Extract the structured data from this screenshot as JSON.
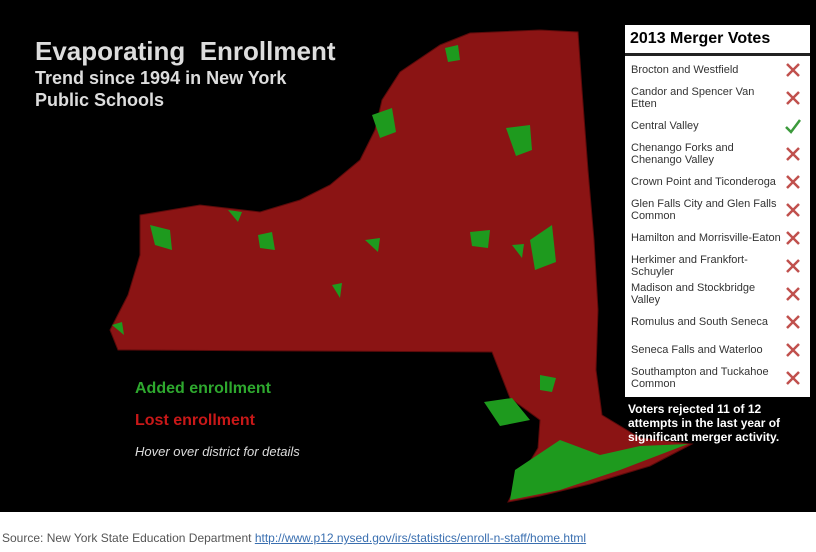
{
  "header": {
    "title": "Evaporating  Enrollment",
    "subtitle": "Trend since 1994 in New York Public Schools"
  },
  "legend": {
    "added": "Added enrollment",
    "lost": "Lost enrollment",
    "hint": "Hover over district for details"
  },
  "merger_votes": {
    "title": "2013 Merger Votes",
    "rows": [
      "Brocton and Westfield",
      "Candor and Spencer Van Etten",
      "Central Valley",
      "Chenango Forks and Chenango Valley",
      "Crown Point and Ticonderoga",
      "Glen Falls City and Glen Falls Common",
      "Hamilton and Morrisville-Eaton",
      "Herkimer and Frankfort-Schuyler",
      "Madison and Stockbridge Valley",
      "Romulus and South Seneca",
      "Seneca Falls and Waterloo",
      "Southampton and Tuckahoe Common"
    ],
    "note": "Voters rejected 11 of 12 attempts in the last year of significant merger activity."
  },
  "source": {
    "label": "Source: New York State Education Department",
    "link": "http://www.p12.nysed.gov/irs/statistics/enroll-n-staff/home.html"
  }
}
